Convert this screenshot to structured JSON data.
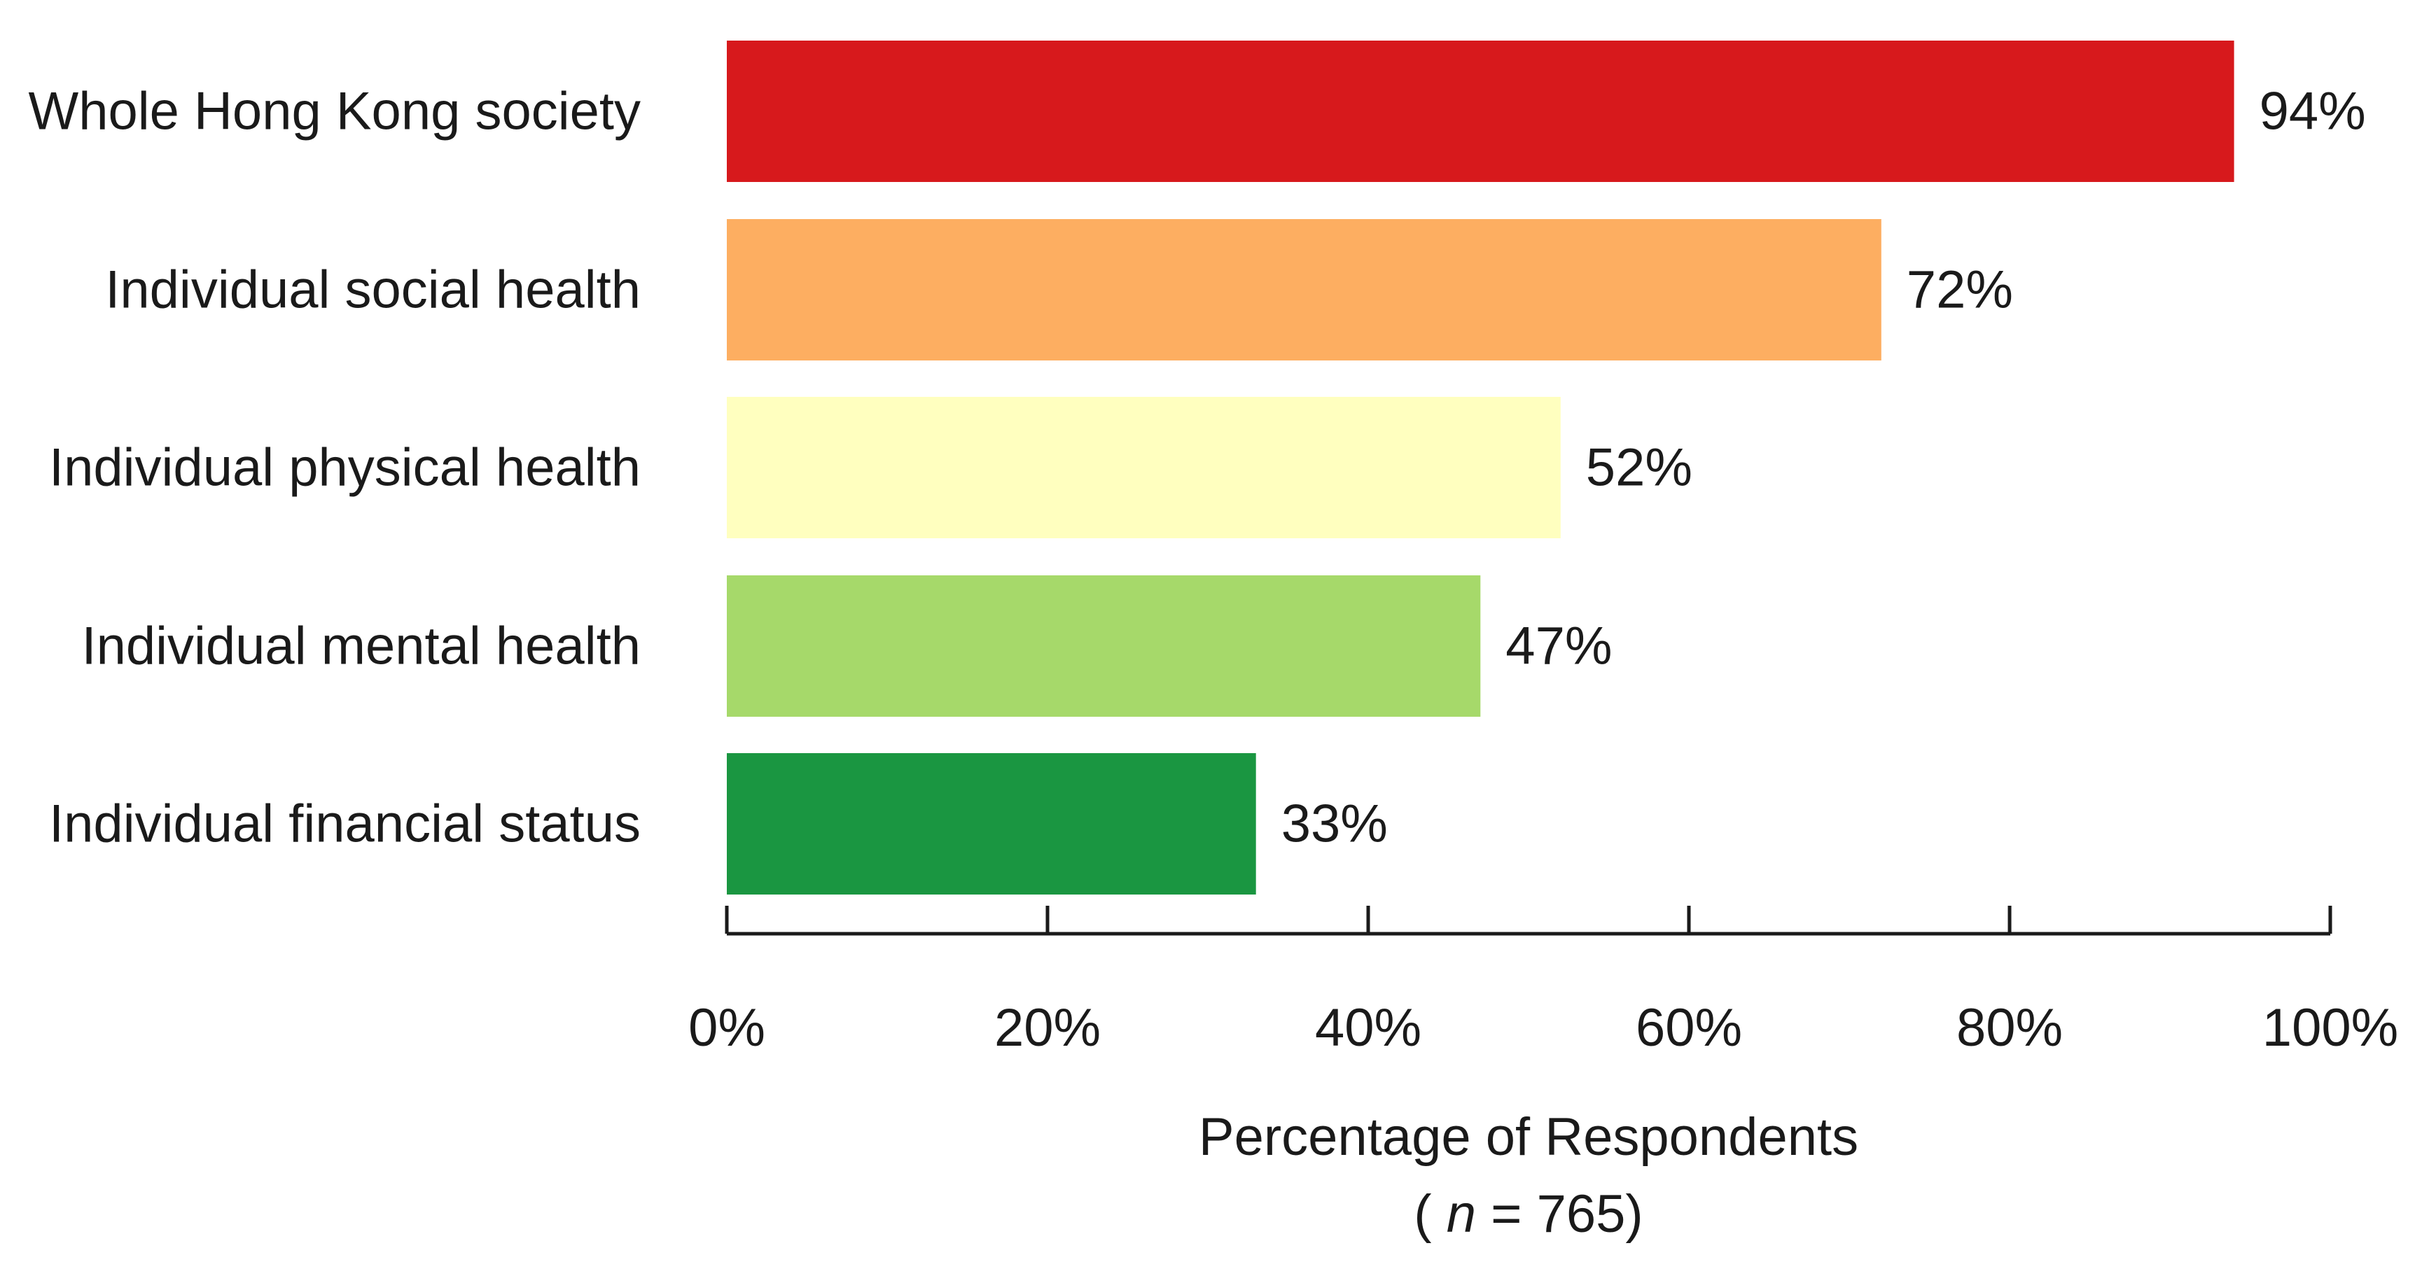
{
  "chart_data": {
    "type": "bar",
    "orientation": "horizontal",
    "categories": [
      "Whole Hong Kong society",
      "Individual social health",
      "Individual physical health",
      "Individual mental health",
      "Individual financial status"
    ],
    "values": [
      94,
      72,
      52,
      47,
      33
    ],
    "data_labels": [
      "94%",
      "72%",
      "52%",
      "47%",
      "33%"
    ],
    "colors": [
      "#d7191c",
      "#fdae61",
      "#ffffbf",
      "#a6d96a",
      "#1a9641"
    ],
    "xlabel": "Percentage of Respondents",
    "xlabel_note": {
      "open": "( ",
      "var": "n",
      "rest": " = 765)"
    },
    "xlim": [
      0,
      100
    ],
    "xticks": [
      0,
      20,
      40,
      60,
      80,
      100
    ],
    "xtick_labels": [
      "0%",
      "20%",
      "40%",
      "60%",
      "80%",
      "100%"
    ],
    "grid": false
  }
}
